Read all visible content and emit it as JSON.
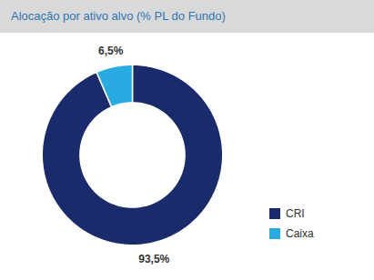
{
  "chart_data": {
    "type": "pie",
    "title": "Alocação por ativo alvo (% PL do Fundo)",
    "categories": [
      "CRI",
      "Caixa"
    ],
    "values": [
      93.5,
      6.5
    ],
    "value_labels": [
      "93,5%",
      "6,5%"
    ],
    "colors": [
      "#1a2b6b",
      "#29abe2"
    ],
    "data_labels": true,
    "legend": "right"
  }
}
